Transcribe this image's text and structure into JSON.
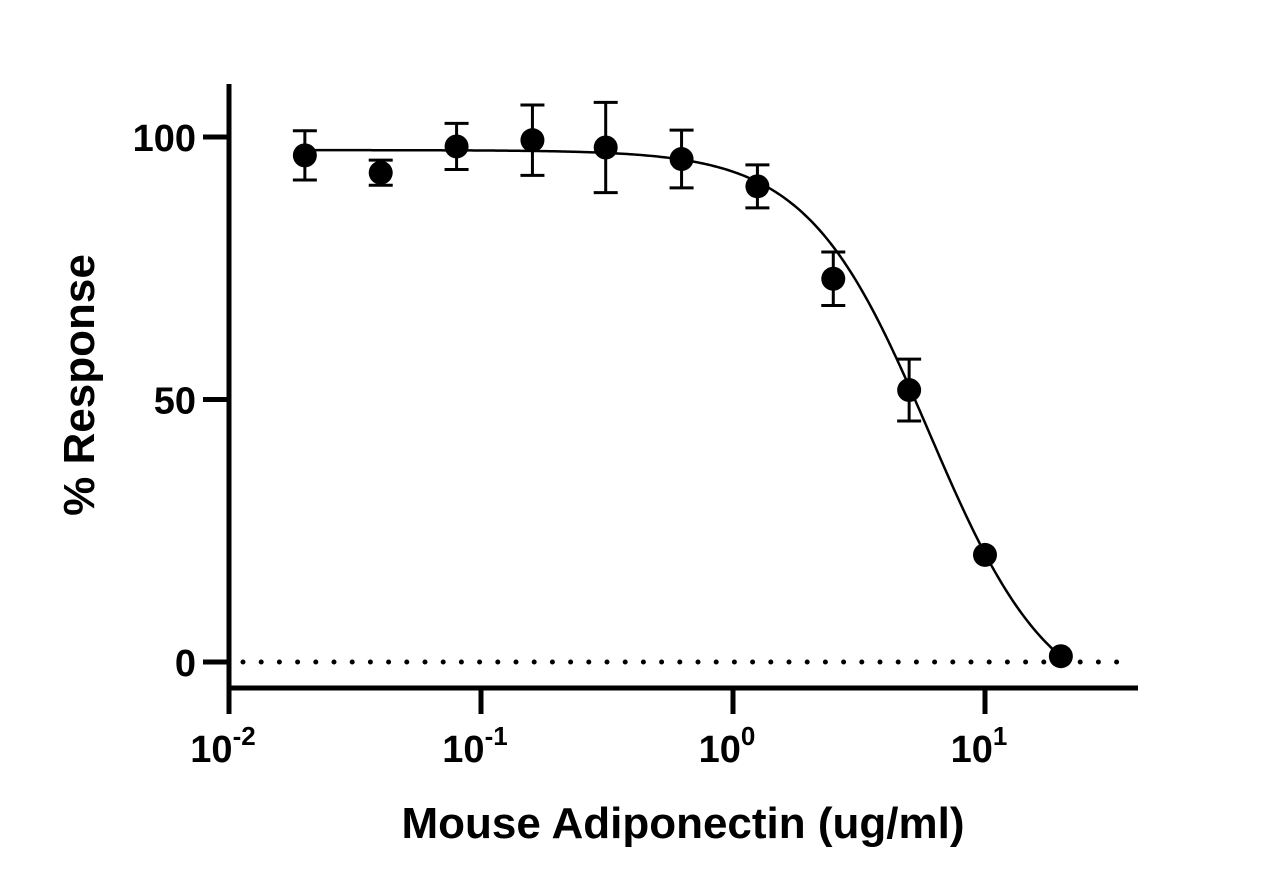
{
  "chart_data": {
    "type": "scatter",
    "title": "",
    "xlabel": "Mouse Adiponectin (ug/ml)",
    "ylabel": "% Response",
    "x_scale": "log",
    "xlim": [
      0.01,
      40
    ],
    "ylim": [
      -5,
      110
    ],
    "x_ticks": [
      0.01,
      0.1,
      1,
      10
    ],
    "x_tick_labels": [
      {
        "base": "10",
        "exp": "-2"
      },
      {
        "base": "10",
        "exp": "-1"
      },
      {
        "base": "10",
        "exp": "0"
      },
      {
        "base": "10",
        "exp": "1"
      }
    ],
    "y_ticks": [
      0,
      50,
      100
    ],
    "y_tick_labels": [
      "0",
      "50",
      "100"
    ],
    "grid": false,
    "reference_line": {
      "y": 0,
      "style": "dotted"
    },
    "series": [
      {
        "x": [
          0.02,
          0.04,
          0.08,
          0.16,
          0.3125,
          0.625,
          1.25,
          2.5,
          5,
          10,
          20
        ],
        "y": [
          96.5,
          93.2,
          98.2,
          99.4,
          98.0,
          95.8,
          90.6,
          73.0,
          51.8,
          20.4,
          1.1
        ],
        "error": [
          4.7,
          2.4,
          4.4,
          6.7,
          8.6,
          5.5,
          4.1,
          5.1,
          5.9,
          0,
          0
        ],
        "marker": "circle",
        "color": "#000000"
      }
    ],
    "fit_curve": {
      "model": "four-parameter logistic",
      "top": 97.5,
      "bottom": -10,
      "ec50": 6,
      "hill": 1.8,
      "x_range": [
        0.02,
        20
      ]
    }
  }
}
